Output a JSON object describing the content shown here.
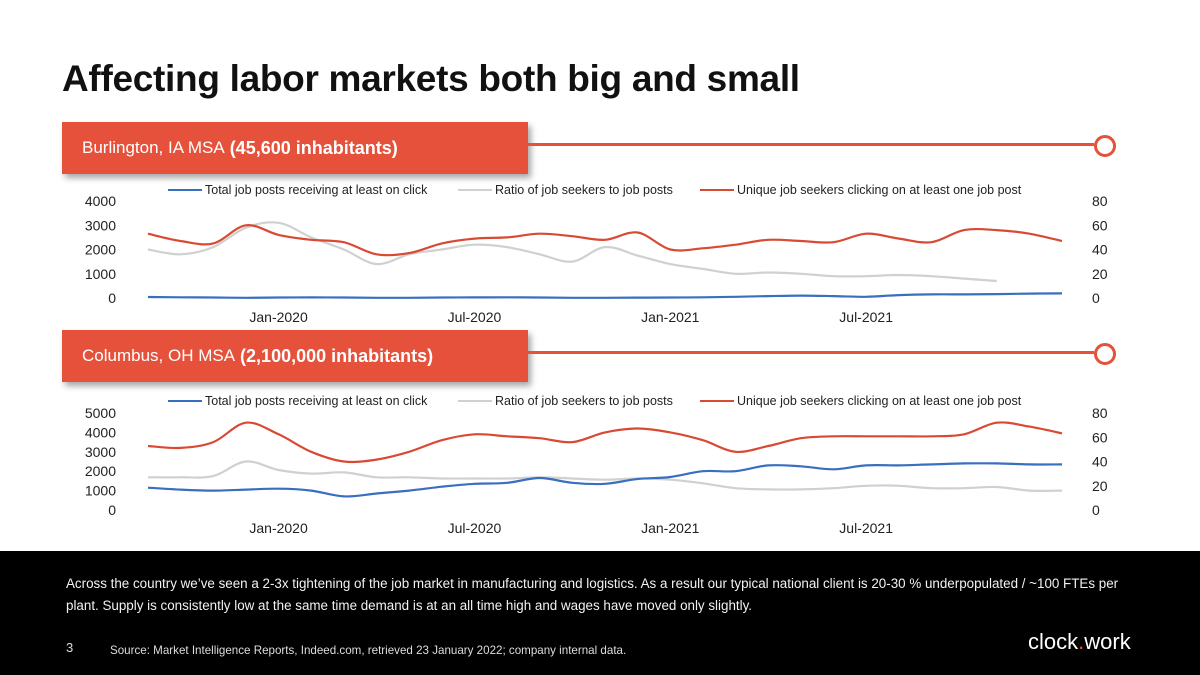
{
  "title": "Affecting labor markets both big and small",
  "colors": {
    "accent": "#e5513a",
    "series_blue": "#3a6fbf",
    "series_grey": "#d0d0d0",
    "series_red": "#d84a33"
  },
  "banners": [
    {
      "label": "Burlington, IA MSA",
      "bold": "(45,600 inhabitants)"
    },
    {
      "label": "Columbus, OH MSA",
      "bold": "(2,100,000 inhabitants)"
    }
  ],
  "chart_data": [
    {
      "type": "line",
      "legend_placement": "top",
      "grid": false,
      "x_ticks": [
        "Jan-2020",
        "Jul-2020",
        "Jan-2021",
        "Jul-2021"
      ],
      "x": [
        "Sep-2019",
        "Oct-2019",
        "Nov-2019",
        "Dec-2019",
        "Jan-2020",
        "Feb-2020",
        "Mar-2020",
        "Apr-2020",
        "May-2020",
        "Jun-2020",
        "Jul-2020",
        "Aug-2020",
        "Sep-2020",
        "Oct-2020",
        "Nov-2020",
        "Dec-2020",
        "Jan-2021",
        "Feb-2021",
        "Mar-2021",
        "Apr-2021",
        "May-2021",
        "Jun-2021",
        "Jul-2021",
        "Aug-2021",
        "Sep-2021",
        "Oct-2021",
        "Nov-2021",
        "Dec-2021",
        "Jan-2022"
      ],
      "y_left_ticks": [
        "4000",
        "3000",
        "2000",
        "1000",
        "0"
      ],
      "y_right_ticks": [
        "80",
        "60",
        "40",
        "20",
        "0"
      ],
      "y_left_range": [
        0,
        4000
      ],
      "y_right_range": [
        0,
        80
      ],
      "series": [
        {
          "name": "Total job posts receiving at least on click",
          "axis": "left",
          "color": "#3a6fbf",
          "values": [
            40,
            30,
            20,
            10,
            20,
            25,
            20,
            10,
            10,
            20,
            25,
            30,
            20,
            10,
            10,
            15,
            20,
            30,
            50,
            80,
            100,
            80,
            50,
            120,
            150,
            150,
            160,
            180,
            190
          ]
        },
        {
          "name": "Ratio of job seekers to job posts",
          "axis": "right",
          "color": "#d0d0d0",
          "values": [
            40,
            36,
            42,
            58,
            62,
            50,
            40,
            28,
            36,
            40,
            44,
            42,
            36,
            30,
            42,
            35,
            28,
            24,
            20,
            21,
            20,
            18,
            18,
            19,
            18,
            16,
            14,
            null,
            null
          ]
        },
        {
          "name": "Unique job seekers clicking on at least one job post",
          "axis": "left",
          "color": "#d84a33",
          "values": [
            2650,
            2350,
            2250,
            3000,
            2600,
            2400,
            2300,
            1800,
            1850,
            2250,
            2450,
            2500,
            2650,
            2550,
            2400,
            2700,
            2000,
            2050,
            2200,
            2400,
            2350,
            2300,
            2650,
            2450,
            2300,
            2800,
            2800,
            2650,
            2350
          ]
        }
      ]
    },
    {
      "type": "line",
      "legend_placement": "top",
      "grid": false,
      "x_ticks": [
        "Jan-2020",
        "Jul-2020",
        "Jan-2021",
        "Jul-2021"
      ],
      "x": [
        "Sep-2019",
        "Oct-2019",
        "Nov-2019",
        "Dec-2019",
        "Jan-2020",
        "Feb-2020",
        "Mar-2020",
        "Apr-2020",
        "May-2020",
        "Jun-2020",
        "Jul-2020",
        "Aug-2020",
        "Sep-2020",
        "Oct-2020",
        "Nov-2020",
        "Dec-2020",
        "Jan-2021",
        "Feb-2021",
        "Mar-2021",
        "Apr-2021",
        "May-2021",
        "Jun-2021",
        "Jul-2021",
        "Aug-2021",
        "Sep-2021",
        "Oct-2021",
        "Nov-2021",
        "Dec-2021",
        "Jan-2022"
      ],
      "y_left_ticks": [
        "5000",
        "4000",
        "3000",
        "2000",
        "1000",
        "0"
      ],
      "y_right_ticks": [
        "80",
        "60",
        "40",
        "20",
        "0"
      ],
      "y_left_range": [
        0,
        5000
      ],
      "y_right_range": [
        0,
        80
      ],
      "series": [
        {
          "name": "Total job posts receiving at least on click",
          "axis": "left",
          "color": "#3a6fbf",
          "values": [
            1150,
            1050,
            1000,
            1050,
            1100,
            1000,
            700,
            850,
            1000,
            1200,
            1350,
            1400,
            1650,
            1400,
            1350,
            1600,
            1700,
            2000,
            2000,
            2300,
            2250,
            2100,
            2300,
            2300,
            2350,
            2400,
            2400,
            2350,
            2350
          ]
        },
        {
          "name": "Ratio of job seekers to job posts",
          "axis": "right",
          "color": "#d0d0d0",
          "values": [
            27,
            27,
            28,
            40,
            33,
            30,
            31,
            27,
            27,
            26,
            26,
            26,
            27,
            26,
            25,
            26,
            25,
            22,
            18,
            17,
            17,
            18,
            20,
            20,
            18,
            18,
            19,
            16,
            16
          ]
        },
        {
          "name": "Unique job seekers clicking on at least one job post",
          "axis": "left",
          "color": "#d84a33",
          "values": [
            3300,
            3200,
            3500,
            4500,
            3900,
            3000,
            2500,
            2600,
            3000,
            3600,
            3900,
            3800,
            3700,
            3500,
            4000,
            4200,
            4000,
            3600,
            3000,
            3300,
            3700,
            3800,
            3800,
            3800,
            3800,
            3900,
            4500,
            4300,
            3950
          ]
        }
      ]
    }
  ],
  "footer": {
    "text": "Across the country we’ve seen a 2-3x tightening of the job market in manufacturing and logistics. As a result our typical national client is 20-30 % underpopulated / ~100 FTEs per plant. Supply is consistently low at the same time demand is at an all time high and wages have moved only slightly.",
    "page_number": "3",
    "source": "Source: Market Intelligence Reports, Indeed.com, retrieved 23 January 2022; company internal data.",
    "logo_prefix": "clock",
    "logo_dot": ".",
    "logo_suffix": "work"
  }
}
